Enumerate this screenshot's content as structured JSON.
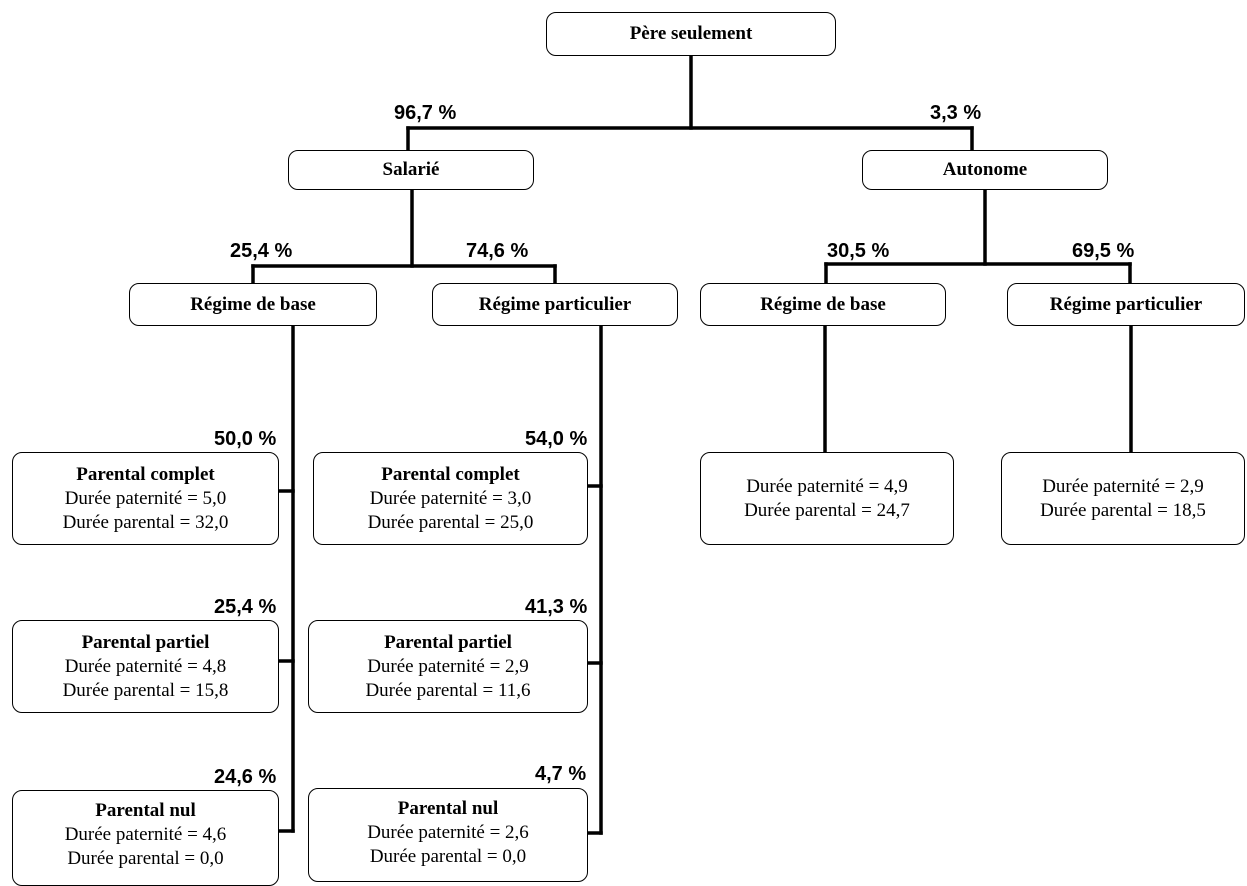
{
  "root": {
    "title": "Père seulement"
  },
  "level1": {
    "salarie": {
      "title": "Salarié",
      "share": "96,7 %"
    },
    "autonome": {
      "title": "Autonome",
      "share": "3,3 %"
    }
  },
  "level2": {
    "salarie_base": {
      "title": "Régime de base",
      "share": "25,4 %"
    },
    "salarie_particulier": {
      "title": "Régime particulier",
      "share": "74,6 %"
    },
    "autonome_base": {
      "title": "Régime de base",
      "share": "30,5 %"
    },
    "autonome_particulier": {
      "title": "Régime particulier",
      "share": "69,5 %"
    }
  },
  "leaves": {
    "sb_complet": {
      "title": "Parental complet",
      "share": "50,0 %",
      "paternite": "Durée paternité = 5,0",
      "parental": "Durée parental = 32,0"
    },
    "sb_partiel": {
      "title": "Parental partiel",
      "share": "25,4 %",
      "paternite": "Durée paternité = 4,8",
      "parental": "Durée parental = 15,8"
    },
    "sb_nul": {
      "title": "Parental nul",
      "share": "24,6 %",
      "paternite": "Durée paternité = 4,6",
      "parental": "Durée parental = 0,0"
    },
    "sp_complet": {
      "title": "Parental complet",
      "share": "54,0 %",
      "paternite": "Durée paternité = 3,0",
      "parental": "Durée parental = 25,0"
    },
    "sp_partiel": {
      "title": "Parental partiel",
      "share": "41,3 %",
      "paternite": "Durée paternité = 2,9",
      "parental": "Durée parental = 11,6"
    },
    "sp_nul": {
      "title": "Parental nul",
      "share": "4,7 %",
      "paternite": "Durée paternité = 2,6",
      "parental": "Durée parental = 0,0"
    },
    "ab": {
      "paternite": "Durée paternité = 4,9",
      "parental": "Durée parental = 24,7"
    },
    "ap": {
      "paternite": "Durée paternité = 2,9",
      "parental": "Durée parental = 18,5"
    }
  }
}
